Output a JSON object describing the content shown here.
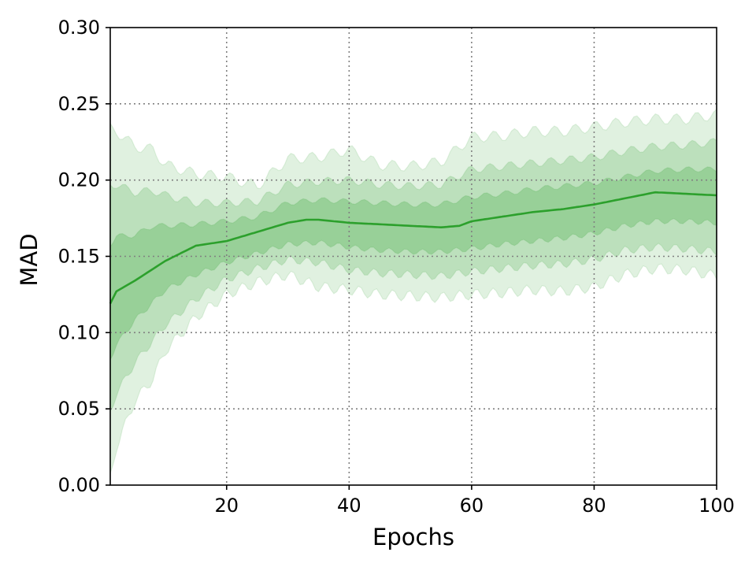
{
  "chart_data": {
    "type": "line",
    "xlabel": "Epochs",
    "ylabel": "MAD",
    "xlim": [
      1,
      100
    ],
    "ylim": [
      0,
      0.3
    ],
    "xticks": [
      20,
      40,
      60,
      80,
      100
    ],
    "xtick_labels": [
      "20",
      "40",
      "60",
      "80",
      "100"
    ],
    "yticks": [
      0,
      0.05,
      0.1,
      0.15,
      0.2,
      0.25,
      0.3
    ],
    "ytick_labels": [
      "0.00",
      "0.05",
      "0.10",
      "0.15",
      "0.20",
      "0.25",
      "0.30"
    ],
    "grid": true,
    "legend": false,
    "colors": {
      "line": "#2ca02c",
      "band": "#2ca02c"
    },
    "series": [
      {
        "x": [
          1,
          2,
          5,
          10,
          13,
          15,
          20,
          25,
          30,
          33,
          35,
          40,
          45,
          50,
          55,
          58,
          60,
          65,
          70,
          75,
          80,
          85,
          90,
          95,
          100
        ],
        "values": [
          0.119,
          0.127,
          0.134,
          0.147,
          0.153,
          0.157,
          0.16,
          0.166,
          0.172,
          0.174,
          0.174,
          0.172,
          0.171,
          0.17,
          0.169,
          0.17,
          0.173,
          0.176,
          0.179,
          0.181,
          0.184,
          0.188,
          0.192,
          0.191,
          0.19
        ]
      }
    ],
    "bands": [
      {
        "opacity": 0.15,
        "x": [
          1,
          2,
          5,
          8,
          10,
          15,
          20,
          25,
          30,
          35,
          40,
          45,
          50,
          55,
          60,
          65,
          70,
          75,
          80,
          85,
          90,
          95,
          100
        ],
        "lower": [
          0.005,
          0.025,
          0.055,
          0.07,
          0.088,
          0.11,
          0.125,
          0.133,
          0.138,
          0.13,
          0.128,
          0.125,
          0.124,
          0.123,
          0.125,
          0.126,
          0.128,
          0.127,
          0.13,
          0.138,
          0.142,
          0.141,
          0.137
        ],
        "upper": [
          0.234,
          0.232,
          0.222,
          0.22,
          0.21,
          0.204,
          0.202,
          0.196,
          0.214,
          0.215,
          0.22,
          0.21,
          0.209,
          0.212,
          0.228,
          0.229,
          0.232,
          0.232,
          0.235,
          0.238,
          0.24,
          0.24,
          0.243
        ]
      },
      {
        "opacity": 0.2,
        "x": [
          1,
          2,
          5,
          8,
          10,
          15,
          20,
          25,
          30,
          35,
          40,
          45,
          50,
          55,
          60,
          65,
          70,
          75,
          80,
          85,
          90,
          95,
          100
        ],
        "lower": [
          0.048,
          0.06,
          0.08,
          0.095,
          0.105,
          0.122,
          0.135,
          0.142,
          0.148,
          0.146,
          0.141,
          0.139,
          0.138,
          0.137,
          0.14,
          0.142,
          0.144,
          0.145,
          0.148,
          0.154,
          0.156,
          0.155,
          0.153
        ],
        "upper": [
          0.197,
          0.197,
          0.192,
          0.193,
          0.19,
          0.185,
          0.185,
          0.186,
          0.197,
          0.199,
          0.2,
          0.197,
          0.196,
          0.197,
          0.207,
          0.209,
          0.211,
          0.213,
          0.215,
          0.219,
          0.222,
          0.223,
          0.225
        ]
      },
      {
        "opacity": 0.25,
        "x": [
          1,
          2,
          5,
          8,
          10,
          15,
          20,
          25,
          30,
          35,
          40,
          45,
          50,
          55,
          60,
          65,
          70,
          75,
          80,
          85,
          90,
          95,
          100
        ],
        "lower": [
          0.083,
          0.092,
          0.108,
          0.12,
          0.128,
          0.138,
          0.146,
          0.152,
          0.158,
          0.159,
          0.156,
          0.154,
          0.153,
          0.153,
          0.155,
          0.158,
          0.16,
          0.162,
          0.165,
          0.17,
          0.173,
          0.173,
          0.172
        ],
        "upper": [
          0.158,
          0.163,
          0.164,
          0.17,
          0.17,
          0.171,
          0.173,
          0.176,
          0.185,
          0.187,
          0.186,
          0.185,
          0.184,
          0.184,
          0.189,
          0.191,
          0.194,
          0.196,
          0.198,
          0.202,
          0.206,
          0.207,
          0.207
        ]
      }
    ]
  }
}
